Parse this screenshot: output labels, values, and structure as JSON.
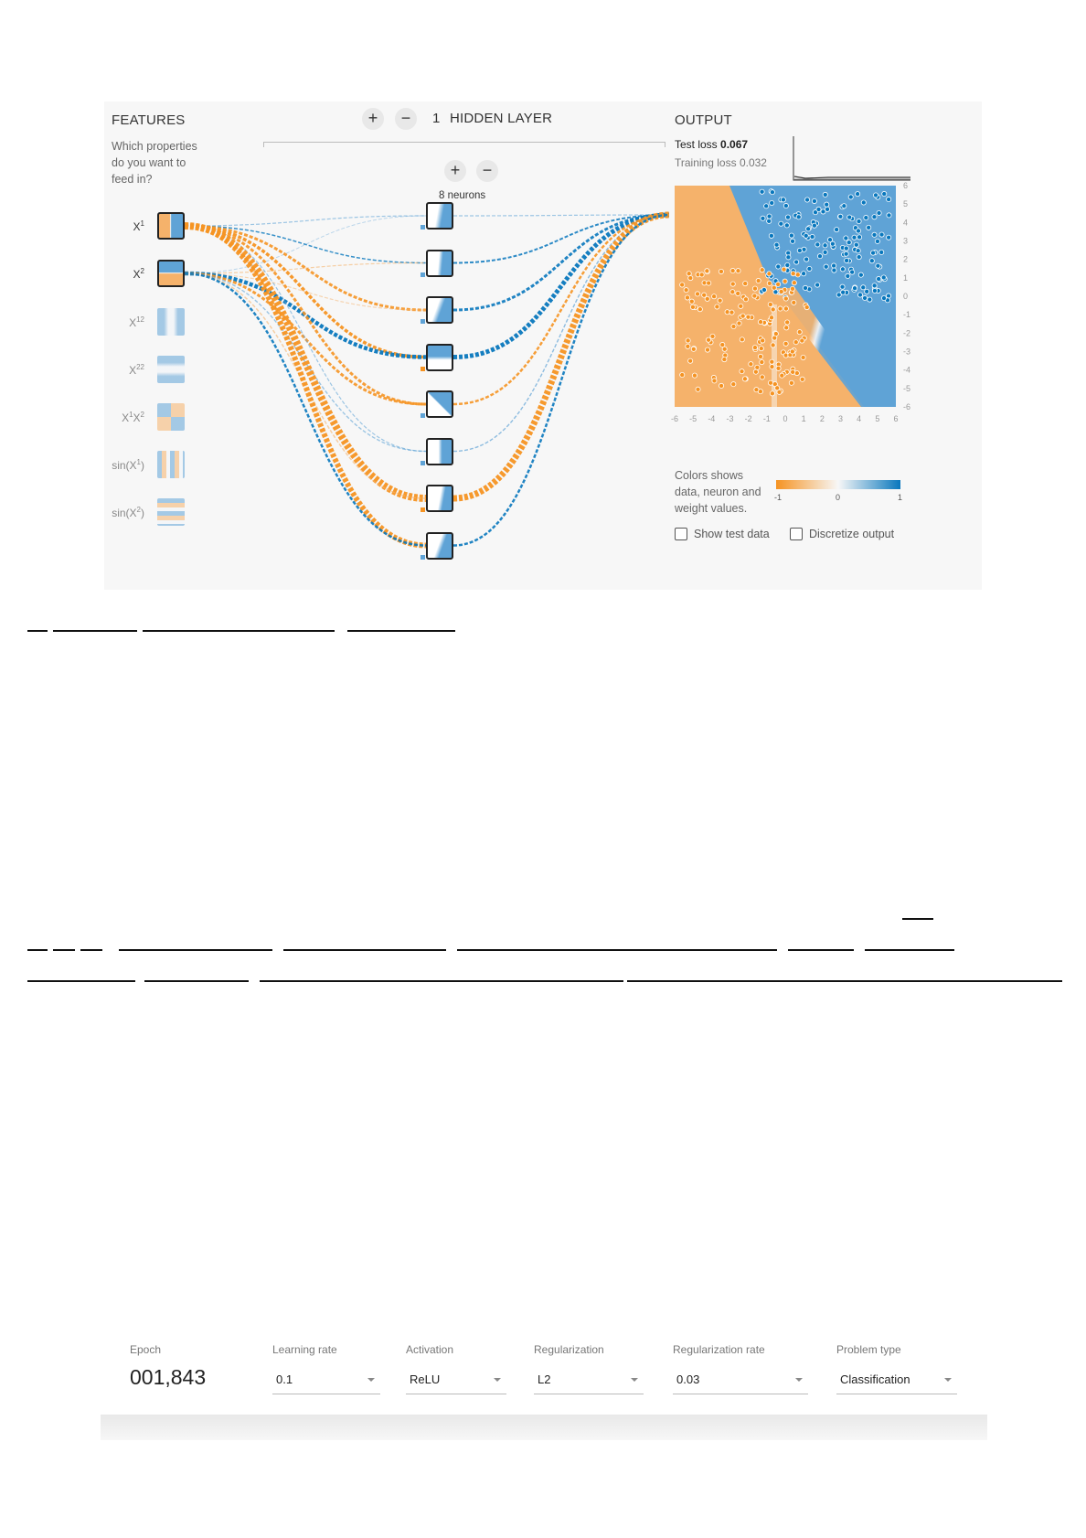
{
  "features": {
    "heading": "FEATURES",
    "question": [
      "Which properties",
      "do you want to",
      "feed in?"
    ],
    "items": [
      {
        "label": "X1",
        "base": "X",
        "sup": "1",
        "active": true,
        "icon": "x1-feature-icon"
      },
      {
        "label": "X2",
        "base": "X",
        "sup": "2",
        "active": true,
        "icon": "x2-feature-icon"
      },
      {
        "label": "X12",
        "base": "X",
        "sup": "12",
        "active": false,
        "icon": "x1-squared-feature-icon"
      },
      {
        "label": "X22",
        "base": "X",
        "sup": "22",
        "active": false,
        "icon": "x2-squared-feature-icon"
      },
      {
        "label": "X1X2",
        "base": "X",
        "sup": "1",
        "base2": "X",
        "sup2": "2",
        "active": false,
        "icon": "x1x2-feature-icon"
      },
      {
        "label": "sin(X1)",
        "pre": "sin(X",
        "sup": "1",
        "post": ")",
        "active": false,
        "icon": "sin-x1-feature-icon"
      },
      {
        "label": "sin(X2)",
        "pre": "sin(X",
        "sup": "2",
        "post": ")",
        "active": false,
        "icon": "sin-x2-feature-icon"
      }
    ]
  },
  "hidden_layers": {
    "count": "1",
    "label": "HIDDEN LAYER",
    "add_layer": "+",
    "remove_layer": "−",
    "add_neuron": "+",
    "remove_neuron": "−",
    "neurons_label": "8 neurons",
    "neuron_count": 8
  },
  "output": {
    "heading": "OUTPUT",
    "test_loss_label": "Test loss",
    "test_loss_value": "0.067",
    "training_loss_label": "Training loss",
    "training_loss_value": "0.032",
    "x_ticks": [
      "-6",
      "-5",
      "-4",
      "-3",
      "-2",
      "-1",
      "0",
      "1",
      "2",
      "3",
      "4",
      "5",
      "6"
    ],
    "y_ticks": [
      "6",
      "5",
      "4",
      "3",
      "2",
      "1",
      "0",
      "-1",
      "-2",
      "-3",
      "-4",
      "-5",
      "-6"
    ],
    "legend_text": [
      "Colors shows",
      "data, neuron and",
      "weight values."
    ],
    "legend_ticks": [
      "-1",
      "0",
      "1"
    ],
    "show_test_data": "Show test data",
    "discretize_output": "Discretize output",
    "colors": {
      "orange": "#f59322",
      "blue": "#0877bd",
      "light_orange": "#f5b26b",
      "light_blue": "#5fa3d6"
    }
  },
  "controls": {
    "epoch_label": "Epoch",
    "epoch_value": "001,843",
    "learning_rate_label": "Learning rate",
    "learning_rate_value": "0.1",
    "activation_label": "Activation",
    "activation_value": "ReLU",
    "regularization_label": "Regularization",
    "regularization_value": "L2",
    "regularization_rate_label": "Regularization rate",
    "regularization_rate_value": "0.03",
    "problem_type_label": "Problem type",
    "problem_type_value": "Classification"
  }
}
